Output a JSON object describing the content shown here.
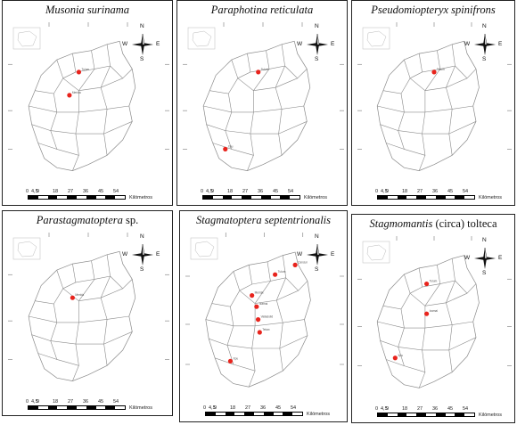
{
  "panels": [
    {
      "title_italic": "Musonia surinama",
      "title_plain": "",
      "records": [
        {
          "label": "Tulum"
        },
        {
          "label": "Merida"
        }
      ]
    },
    {
      "title_italic": "Paraphotina reticulata",
      "title_plain": "",
      "records": [
        {
          "label": "Tulum"
        },
        {
          "label": "Xpu"
        }
      ]
    },
    {
      "title_italic": "Pseudomiopteryx spinifrons",
      "title_plain": "",
      "records": [
        {
          "label": "Tulum"
        }
      ]
    },
    {
      "title_italic": "Parastagmatoptera",
      "title_plain": " sp.",
      "records": [
        {
          "label": "Merida"
        }
      ]
    },
    {
      "title_italic": "Stagmatoptera septentrionalis",
      "title_plain": "",
      "records": [
        {
          "label": "Tulum"
        },
        {
          "label": "Cancun"
        },
        {
          "label": "Merida"
        },
        {
          "label": "Izamal"
        },
        {
          "label": "Valladolid"
        },
        {
          "label": "Tekax"
        },
        {
          "label": "Xpu"
        }
      ]
    },
    {
      "title_italic": "Stagmomantis",
      "title_plain": " (circa) tolteca",
      "records": [
        {
          "label": "Tulum"
        },
        {
          "label": "Izamal"
        },
        {
          "label": "Xpu"
        }
      ]
    }
  ],
  "scale": {
    "ticks": [
      "0",
      "4,5",
      "9",
      "18",
      "27",
      "36",
      "45",
      "54"
    ],
    "unit": "Kilómetros"
  },
  "compass": {
    "n": "N",
    "s": "S",
    "e": "E",
    "w": "W"
  },
  "colors": {
    "record_marker": "#e8241d",
    "boundary": "#8a8a8a",
    "frame": "#222222"
  }
}
